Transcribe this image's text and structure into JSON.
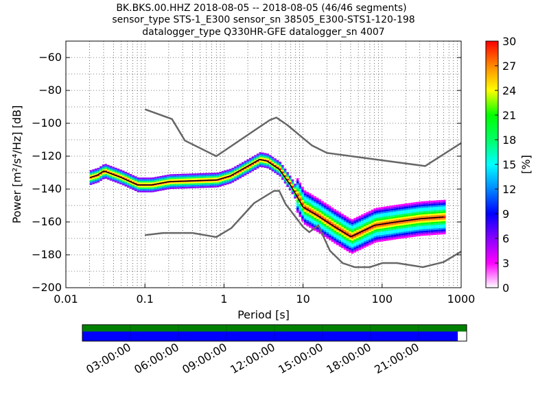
{
  "title_lines": [
    "BK.BKS.00.HHZ   2018-08-05 -- 2018-08-05  (46/46 segments)",
    "sensor_type STS-1_E300 sensor_sn 38505_E300-STS1-120-198",
    "datalogger_type Q330HR-GFE datalogger_sn 4007"
  ],
  "chart_data": {
    "type": "heatmap",
    "xlabel": "Period [s]",
    "ylabel": "Power [m²/s⁴/Hz] [dB]",
    "xscale": "log",
    "xlim": [
      0.01,
      1000
    ],
    "ylim": [
      -200,
      -50
    ],
    "x_ticks": [
      0.01,
      0.1,
      1,
      10,
      100,
      1000
    ],
    "x_tick_labels": [
      "0.01",
      "0.1",
      "1",
      "10",
      "100",
      "1000"
    ],
    "y_ticks": [
      -200,
      -180,
      -160,
      -140,
      -120,
      -100,
      -80,
      -60
    ],
    "y_tick_labels": [
      "−200",
      "−180",
      "−160",
      "−140",
      "−120",
      "−100",
      "−80",
      "−60"
    ],
    "grid": "dotted",
    "colorbar": {
      "label": "[%]",
      "range": [
        0,
        30
      ],
      "ticks": [
        0,
        3,
        6,
        9,
        12,
        15,
        18,
        21,
        24,
        27,
        30
      ],
      "tick_labels": [
        "0",
        "3",
        "6",
        "9",
        "12",
        "15",
        "18",
        "21",
        "24",
        "27",
        "30"
      ],
      "colors": [
        "#ffffff",
        "#ff00ff",
        "#8800ff",
        "#0000ff",
        "#0088ff",
        "#00ffff",
        "#00ff66",
        "#00ff00",
        "#ffff00",
        "#ff8800",
        "#ff0000"
      ]
    },
    "series": [
      {
        "kind": "noise-model-high",
        "color": "#666666",
        "x": [
          0.1,
          0.22,
          0.32,
          0.8,
          3.8,
          4.6,
          6.3,
          13,
          20,
          350,
          1000
        ],
        "y": [
          -91.5,
          -97.4,
          -110.5,
          -120,
          -98,
          -96.5,
          -101,
          -113.5,
          -118,
          -126,
          -112
        ]
      },
      {
        "kind": "noise-model-low",
        "color": "#666666",
        "x": [
          0.1,
          0.17,
          0.4,
          0.8,
          1.24,
          2.4,
          4.3,
          5,
          6,
          10,
          12,
          15.6,
          21.9,
          31.6,
          45,
          70,
          101,
          154,
          328,
          600,
          1000
        ],
        "y": [
          -168,
          -166.7,
          -166.7,
          -169.2,
          -163.7,
          -148.6,
          -141.1,
          -141.1,
          -149,
          -163,
          -166.2,
          -162.1,
          -177.5,
          -185,
          -187.5,
          -187.5,
          -185,
          -185,
          -187.5,
          -184.4,
          -178
        ]
      },
      {
        "kind": "mode-curve",
        "color": "#000000",
        "x": [
          0.02,
          0.025,
          0.03,
          0.05,
          0.08,
          0.12,
          0.2,
          0.4,
          0.8,
          1.2,
          2,
          2.8,
          3.5,
          5,
          7,
          10,
          15,
          25,
          40,
          80,
          150,
          300,
          600
        ],
        "y": [
          -133,
          -131.5,
          -129,
          -133,
          -137.5,
          -137.5,
          -135.5,
          -135,
          -134.5,
          -132,
          -126,
          -122,
          -123,
          -128,
          -138,
          -151,
          -156,
          -163,
          -169,
          -162,
          -160,
          -158,
          -157
        ]
      }
    ],
    "secondary_panel": {
      "type": "data-availability",
      "bar_colors": [
        "#008000",
        "#0000ff"
      ],
      "time_labels": [
        "03:00:00",
        "06:00:00",
        "09:00:00",
        "12:00:00",
        "15:00:00",
        "18:00:00",
        "21:00:00"
      ],
      "blue_coverage_fraction": 0.977
    }
  }
}
